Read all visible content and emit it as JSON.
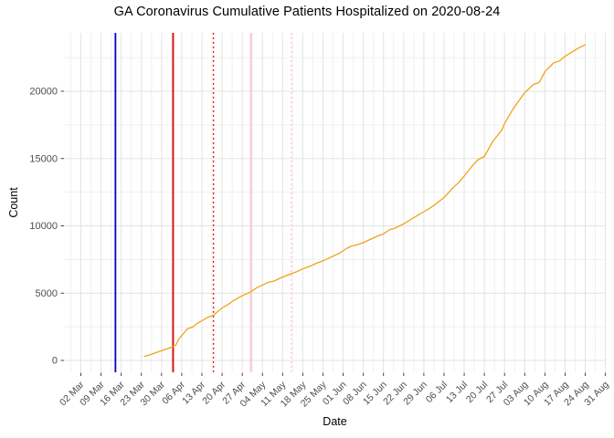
{
  "window": {
    "title": "GA Coronavirus Cumulative Patients Hospitalized on 2020-08-24"
  },
  "chart_data": {
    "type": "line",
    "title": "GA Coronavirus Cumulative Patients Hospitalized on 2020-08-24",
    "xlabel": "Date",
    "ylabel": "Count",
    "x_start": "2020-03-02",
    "x_tick_labels": [
      "02 Mar",
      "09 Mar",
      "16 Mar",
      "23 Mar",
      "30 Mar",
      "06 Apr",
      "13 Apr",
      "20 Apr",
      "27 Apr",
      "04 May",
      "11 May",
      "18 May",
      "25 May",
      "01 Jun",
      "08 Jun",
      "15 Jun",
      "22 Jun",
      "29 Jun",
      "06 Jul",
      "13 Jul",
      "20 Jul",
      "27 Jul",
      "03 Aug",
      "10 Aug",
      "17 Aug",
      "24 Aug",
      "31 Aug"
    ],
    "x_tick_interval_days": 7,
    "y_ticks": [
      0,
      5000,
      10000,
      15000,
      20000
    ],
    "ylim": [
      0,
      24400
    ],
    "grid": "major and minor, light gray on white, no panel border",
    "legend": "none",
    "colors": {
      "series_line": "#EFA41A",
      "grid_major": "#E3E3E3",
      "grid_minor": "#F0F0F0",
      "axis_tick": "#333333",
      "tick_label": "#4d4d4d"
    },
    "series": [
      {
        "name": "cumulative-patients-hospitalized",
        "color": "#EFA41A",
        "points": [
          [
            "2020-03-24",
            300
          ],
          [
            "2020-03-25",
            350
          ],
          [
            "2020-03-27",
            500
          ],
          [
            "2020-03-29",
            650
          ],
          [
            "2020-03-31",
            800
          ],
          [
            "2020-04-02",
            950
          ],
          [
            "2020-04-03",
            1050
          ],
          [
            "2020-04-04",
            1150
          ],
          [
            "2020-04-05",
            1600
          ],
          [
            "2020-04-07",
            2100
          ],
          [
            "2020-04-08",
            2350
          ],
          [
            "2020-04-10",
            2500
          ],
          [
            "2020-04-11",
            2700
          ],
          [
            "2020-04-13",
            2950
          ],
          [
            "2020-04-15",
            3200
          ],
          [
            "2020-04-17",
            3350
          ],
          [
            "2020-04-18",
            3550
          ],
          [
            "2020-04-20",
            3900
          ],
          [
            "2020-04-22",
            4150
          ],
          [
            "2020-04-24",
            4450
          ],
          [
            "2020-04-26",
            4700
          ],
          [
            "2020-04-28",
            4900
          ],
          [
            "2020-04-30",
            5100
          ],
          [
            "2020-05-02",
            5400
          ],
          [
            "2020-05-04",
            5600
          ],
          [
            "2020-05-06",
            5800
          ],
          [
            "2020-05-08",
            5900
          ],
          [
            "2020-05-11",
            6200
          ],
          [
            "2020-05-14",
            6450
          ],
          [
            "2020-05-16",
            6600
          ],
          [
            "2020-05-18",
            6800
          ],
          [
            "2020-05-21",
            7050
          ],
          [
            "2020-05-23",
            7250
          ],
          [
            "2020-05-25",
            7400
          ],
          [
            "2020-05-28",
            7700
          ],
          [
            "2020-05-31",
            8000
          ],
          [
            "2020-06-02",
            8300
          ],
          [
            "2020-06-04",
            8500
          ],
          [
            "2020-06-06",
            8600
          ],
          [
            "2020-06-08",
            8750
          ],
          [
            "2020-06-11",
            9050
          ],
          [
            "2020-06-13",
            9250
          ],
          [
            "2020-06-15",
            9400
          ],
          [
            "2020-06-17",
            9700
          ],
          [
            "2020-06-19",
            9830
          ],
          [
            "2020-06-22",
            10150
          ],
          [
            "2020-06-25",
            10550
          ],
          [
            "2020-06-27",
            10800
          ],
          [
            "2020-06-29",
            11050
          ],
          [
            "2020-07-01",
            11300
          ],
          [
            "2020-07-03",
            11600
          ],
          [
            "2020-07-06",
            12100
          ],
          [
            "2020-07-09",
            12800
          ],
          [
            "2020-07-11",
            13200
          ],
          [
            "2020-07-13",
            13700
          ],
          [
            "2020-07-16",
            14500
          ],
          [
            "2020-07-18",
            14950
          ],
          [
            "2020-07-20",
            15150
          ],
          [
            "2020-07-23",
            16300
          ],
          [
            "2020-07-26",
            17100
          ],
          [
            "2020-07-27",
            17600
          ],
          [
            "2020-07-30",
            18700
          ],
          [
            "2020-08-03",
            19900
          ],
          [
            "2020-08-06",
            20500
          ],
          [
            "2020-08-08",
            20650
          ],
          [
            "2020-08-10",
            21450
          ],
          [
            "2020-08-13",
            22100
          ],
          [
            "2020-08-15",
            22250
          ],
          [
            "2020-08-17",
            22600
          ],
          [
            "2020-08-20",
            23000
          ],
          [
            "2020-08-22",
            23250
          ],
          [
            "2020-08-24",
            23450
          ]
        ]
      }
    ],
    "vlines": [
      {
        "date": "2020-03-14",
        "color": "#0000CD",
        "style": "solid",
        "width": 1.8
      },
      {
        "date": "2020-04-03",
        "color": "#E00000",
        "style": "solid",
        "width": 1.8
      },
      {
        "date": "2020-04-17",
        "color": "#E00000",
        "style": "dotted",
        "width": 1.4
      },
      {
        "date": "2020-04-30",
        "color": "#FFC0CB",
        "style": "solid",
        "width": 1.8
      },
      {
        "date": "2020-05-14",
        "color": "#FFC0CB",
        "style": "dotted",
        "width": 1.4
      }
    ]
  }
}
